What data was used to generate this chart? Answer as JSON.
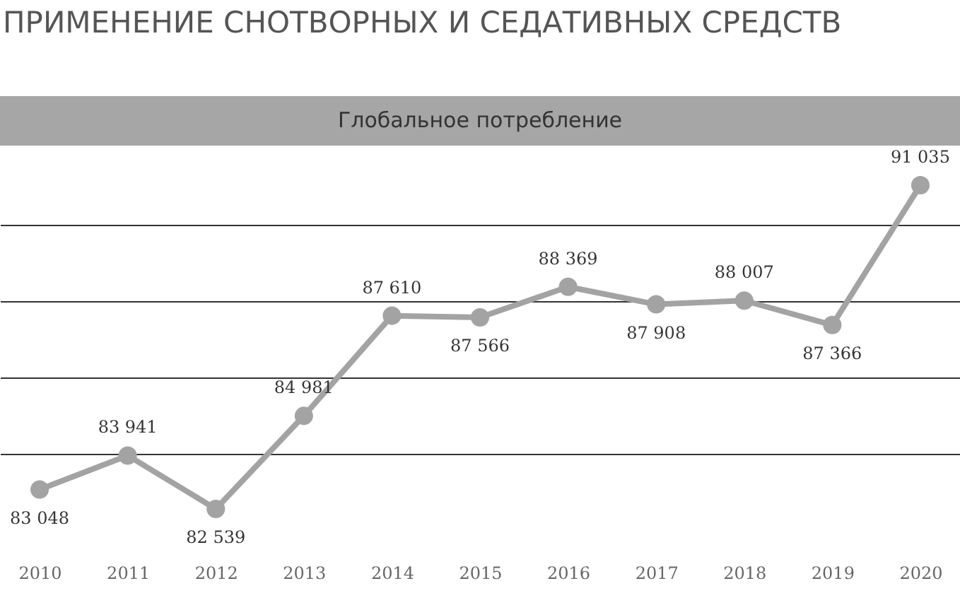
{
  "chart_data": {
    "type": "line",
    "title": "ПРИМЕНЕНИЕ СНОТВОРНЫХ И СЕДАТИВНЫХ СРЕДСТВ",
    "subtitle": "Глобальное потребление",
    "categories": [
      "2010",
      "2011",
      "2012",
      "2013",
      "2014",
      "2015",
      "2016",
      "2017",
      "2018",
      "2019",
      "2020"
    ],
    "series": [
      {
        "color": "#a3a3a3",
        "values": [
          83048,
          83941,
          82539,
          84981,
          87610,
          87566,
          88369,
          87908,
          88007,
          87366,
          91035
        ],
        "value_labels": [
          "83 048",
          "83 941",
          "82 539",
          "84 981",
          "87 610",
          "87 566",
          "88 369",
          "87 908",
          "88 007",
          "87 366",
          "91 035"
        ]
      }
    ],
    "yticks": [
      {
        "value": 84000,
        "label": null
      },
      {
        "value": 86000,
        "label": null
      },
      {
        "value": 88000,
        "label": null
      },
      {
        "value": 90000,
        "label": null
      }
    ],
    "grid": "y",
    "marker": "circle",
    "line_style": "solid"
  }
}
